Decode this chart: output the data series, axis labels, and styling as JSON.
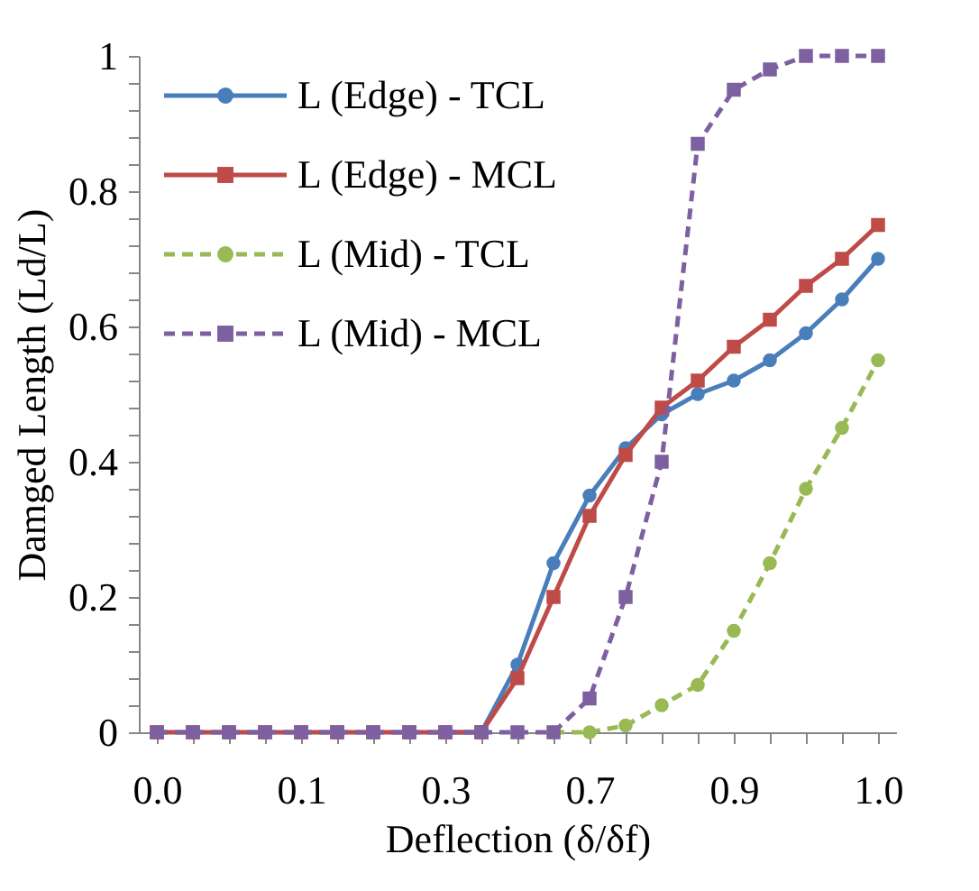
{
  "chart_data": {
    "type": "line",
    "xlabel": "Deflection (δ/δf)",
    "ylabel": "Damged Length (Ld/L)",
    "categories": [
      "0.0",
      null,
      null,
      null,
      "0.1",
      null,
      null,
      null,
      "0.3",
      null,
      null,
      null,
      "0.7",
      null,
      null,
      null,
      "0.9",
      null,
      null,
      null,
      "1.0"
    ],
    "series": [
      {
        "name": "L (Edge) - TCL",
        "color": "#4a7ebb",
        "marker": "circle",
        "line_style": "solid",
        "values": [
          null,
          null,
          null,
          null,
          null,
          null,
          null,
          null,
          0,
          0,
          0.1,
          0.25,
          0.35,
          0.42,
          0.47,
          0.5,
          0.52,
          0.55,
          0.59,
          0.64,
          0.7
        ]
      },
      {
        "name": "L (Edge) - MCL",
        "color": "#be4b48",
        "marker": "square",
        "line_style": "solid",
        "values": [
          0,
          0,
          0,
          0,
          0,
          0,
          0,
          0,
          0,
          0,
          0.08,
          0.2,
          0.32,
          0.41,
          0.48,
          0.52,
          0.57,
          0.61,
          0.66,
          0.7,
          0.75
        ]
      },
      {
        "name": "L (Mid) - TCL",
        "color": "#98b954",
        "marker": "circle",
        "line_style": "dashed",
        "values": [
          null,
          null,
          null,
          null,
          null,
          null,
          null,
          null,
          null,
          null,
          null,
          0,
          0,
          0.01,
          0.04,
          0.07,
          0.15,
          0.25,
          0.36,
          0.45,
          0.55
        ]
      },
      {
        "name": "L (Mid) - MCL",
        "color": "#7d60a0",
        "marker": "square",
        "line_style": "dashed",
        "values": [
          0,
          0,
          0,
          0,
          0,
          0,
          0,
          0,
          0,
          0,
          0,
          0,
          0.05,
          0.2,
          0.4,
          0.87,
          0.95,
          0.98,
          1,
          1,
          1
        ]
      }
    ],
    "ylim": [
      0,
      1
    ],
    "yticks": [
      0,
      {
        "value": 0.04,
        "label": null
      },
      {
        "value": 0.08,
        "label": null
      },
      {
        "value": 0.12,
        "label": null
      },
      {
        "value": 0.16,
        "label": null
      },
      0.2,
      {
        "value": 0.24,
        "label": null
      },
      {
        "value": 0.28,
        "label": null
      },
      {
        "value": 0.32,
        "label": null
      },
      {
        "value": 0.36,
        "label": null
      },
      0.4,
      {
        "value": 0.44,
        "label": null
      },
      {
        "value": 0.48,
        "label": null
      },
      {
        "value": 0.52,
        "label": null
      },
      {
        "value": 0.56,
        "label": null
      },
      0.6,
      {
        "value": 0.64,
        "label": null
      },
      {
        "value": 0.68,
        "label": null
      },
      {
        "value": 0.72,
        "label": null
      },
      {
        "value": 0.76,
        "label": null
      },
      0.8,
      {
        "value": 0.84,
        "label": null
      },
      {
        "value": 0.88,
        "label": null
      },
      {
        "value": 0.92,
        "label": null
      },
      {
        "value": 0.96,
        "label": null
      },
      1
    ],
    "grid": false,
    "legend": "top left"
  }
}
